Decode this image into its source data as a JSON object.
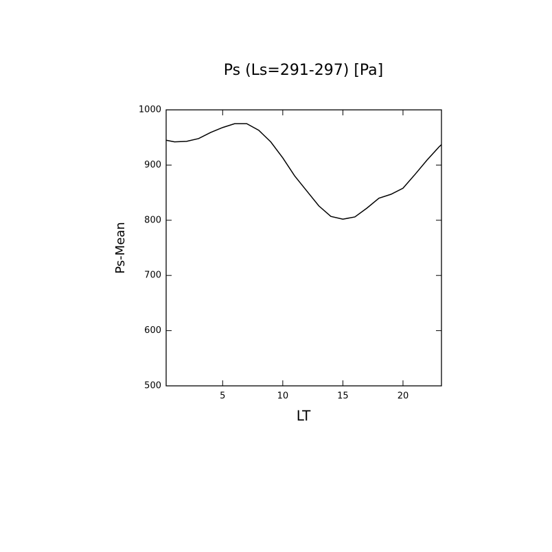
{
  "chart_data": {
    "type": "line",
    "title": "Ps (Ls=291-297) [Pa]",
    "x_label": "LT",
    "y_label": "Ps-Mean",
    "x": [
      0.3,
      1,
      2,
      3,
      4,
      5,
      6,
      7,
      8,
      9,
      10,
      11,
      12,
      13,
      14,
      15,
      16,
      17,
      18,
      19,
      20,
      21,
      22,
      23,
      23.2
    ],
    "series": [
      {
        "name": "Ps-Mean",
        "color": "#000000",
        "values": [
          945,
          942,
          943,
          948,
          959,
          968,
          975,
          975,
          963,
          942,
          913,
          880,
          853,
          826,
          807,
          802,
          806,
          822,
          840,
          847,
          858,
          883,
          909,
          933,
          937
        ]
      }
    ],
    "xlim": [
      0.3,
      23.2
    ],
    "xticks": [
      5,
      10,
      15,
      20
    ],
    "ylim": [
      500,
      1000
    ],
    "yticks": [
      500,
      600,
      700,
      800,
      900,
      1000
    ]
  }
}
